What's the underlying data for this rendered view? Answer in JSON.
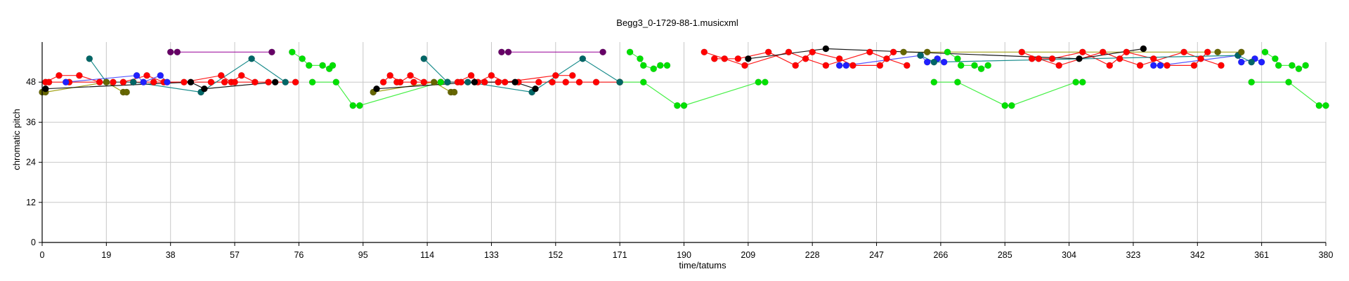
{
  "chart_data": {
    "type": "scatter",
    "title": "Begg3_0-1729-88-1.musicxml",
    "xlabel": "time/tatums",
    "ylabel": "chromatic pitch",
    "xlim": [
      0,
      380
    ],
    "ylim": [
      0,
      60
    ],
    "xticks": [
      0,
      19,
      38,
      57,
      76,
      95,
      114,
      133,
      152,
      171,
      190,
      209,
      228,
      247,
      266,
      285,
      304,
      323,
      342,
      361,
      380
    ],
    "yticks": [
      0,
      12,
      24,
      36,
      48
    ],
    "grid": true,
    "legend": "none",
    "colors": {
      "red": "#ff0000",
      "green": "#00e000",
      "blue": "#2020ff",
      "teal": "#006666",
      "olive": "#666600",
      "purple": "#660066",
      "black": "#000000",
      "red_line": "#ff0000",
      "green_line": "#33ee33",
      "blue_line": "#4444ff",
      "teal_line": "#008080",
      "olive_line": "#999900",
      "purple_line": "#990099"
    },
    "series": [
      {
        "color": "red",
        "line": "red_line",
        "chains": [
          [
            [
              1,
              48
            ],
            [
              5,
              50
            ],
            [
              11,
              50
            ],
            [
              17,
              48
            ],
            [
              24,
              48
            ],
            [
              31,
              50
            ],
            [
              36,
              48
            ],
            [
              42,
              48
            ],
            [
              53,
              50
            ],
            [
              56,
              48
            ],
            [
              59,
              50
            ],
            [
              63,
              48
            ]
          ],
          [
            [
              2,
              48
            ],
            [
              8,
              48
            ],
            [
              21,
              48
            ],
            [
              27,
              48
            ],
            [
              33,
              48
            ],
            [
              50,
              48
            ],
            [
              54,
              48
            ],
            [
              57,
              48
            ],
            [
              67,
              48
            ],
            [
              75,
              48
            ]
          ],
          [
            [
              101,
              48
            ],
            [
              103,
              50
            ],
            [
              106,
              48
            ],
            [
              109,
              50
            ],
            [
              113,
              48
            ],
            [
              118,
              48
            ],
            [
              123,
              48
            ],
            [
              127,
              50
            ],
            [
              129,
              48
            ],
            [
              133,
              50
            ],
            [
              137,
              48
            ],
            [
              152,
              50
            ],
            [
              157,
              50
            ]
          ],
          [
            [
              105,
              48
            ],
            [
              110,
              48
            ],
            [
              124,
              48
            ],
            [
              131,
              48
            ],
            [
              135,
              48
            ],
            [
              141,
              48
            ],
            [
              147,
              48
            ],
            [
              151,
              48
            ],
            [
              155,
              48
            ],
            [
              159,
              48
            ],
            [
              164,
              48
            ],
            [
              171,
              48
            ]
          ],
          [
            [
              196,
              57
            ],
            [
              202,
              55
            ],
            [
              208,
              53
            ],
            [
              221,
              57
            ],
            [
              226,
              55
            ],
            [
              232,
              53
            ],
            [
              245,
              57
            ],
            [
              250,
              55
            ],
            [
              256,
              53
            ]
          ],
          [
            [
              199,
              55
            ],
            [
              206,
              55
            ],
            [
              215,
              57
            ],
            [
              223,
              53
            ],
            [
              228,
              57
            ],
            [
              236,
              55
            ],
            [
              240,
              53
            ],
            [
              248,
              53
            ],
            [
              252,
              57
            ]
          ],
          [
            [
              290,
              57
            ],
            [
              295,
              55
            ],
            [
              301,
              53
            ],
            [
              314,
              57
            ],
            [
              319,
              55
            ],
            [
              325,
              53
            ],
            [
              338,
              57
            ],
            [
              343,
              55
            ],
            [
              349,
              53
            ]
          ],
          [
            [
              293,
              55
            ],
            [
              299,
              55
            ],
            [
              308,
              57
            ],
            [
              316,
              53
            ],
            [
              321,
              57
            ],
            [
              329,
              55
            ],
            [
              333,
              53
            ],
            [
              341,
              53
            ],
            [
              345,
              57
            ]
          ]
        ]
      },
      {
        "color": "green",
        "line": "green_line",
        "chains": [
          [
            [
              74,
              57
            ],
            [
              77,
              55
            ],
            [
              79,
              53
            ],
            [
              83,
              53
            ],
            [
              85,
              52
            ],
            [
              86,
              53
            ]
          ],
          [
            [
              80,
              48
            ],
            [
              87,
              48
            ],
            [
              92,
              41
            ],
            [
              94,
              41
            ],
            [
              118,
              48
            ],
            [
              120,
              48
            ]
          ],
          [
            [
              174,
              57
            ],
            [
              177,
              55
            ],
            [
              178,
              53
            ],
            [
              181,
              52
            ],
            [
              183,
              53
            ],
            [
              185,
              53
            ]
          ],
          [
            [
              171,
              48
            ],
            [
              178,
              48
            ],
            [
              188,
              41
            ],
            [
              190,
              41
            ],
            [
              212,
              48
            ],
            [
              214,
              48
            ]
          ],
          [
            [
              268,
              57
            ],
            [
              271,
              55
            ],
            [
              272,
              53
            ],
            [
              276,
              53
            ],
            [
              278,
              52
            ],
            [
              280,
              53
            ]
          ],
          [
            [
              264,
              48
            ],
            [
              271,
              48
            ],
            [
              285,
              41
            ],
            [
              287,
              41
            ],
            [
              306,
              48
            ],
            [
              308,
              48
            ]
          ],
          [
            [
              362,
              57
            ],
            [
              365,
              55
            ],
            [
              366,
              53
            ],
            [
              370,
              53
            ],
            [
              372,
              52
            ],
            [
              374,
              53
            ]
          ],
          [
            [
              358,
              48
            ],
            [
              369,
              48
            ],
            [
              378,
              41
            ],
            [
              380,
              41
            ]
          ]
        ]
      },
      {
        "color": "blue",
        "line": "blue_line",
        "chains": [
          [
            [
              7,
              48
            ],
            [
              28,
              50
            ],
            [
              30,
              48
            ],
            [
              35,
              50
            ],
            [
              37,
              48
            ]
          ],
          [
            [
              236,
              53
            ],
            [
              238,
              53
            ],
            [
              260,
              56
            ],
            [
              262,
              54
            ],
            [
              265,
              55
            ],
            [
              267,
              54
            ]
          ],
          [
            [
              329,
              53
            ],
            [
              331,
              53
            ],
            [
              354,
              56
            ],
            [
              355,
              54
            ],
            [
              359,
              55
            ],
            [
              361,
              54
            ]
          ]
        ]
      },
      {
        "color": "teal",
        "line": "teal_line",
        "chains": [
          [
            [
              14,
              55
            ],
            [
              19,
              48
            ],
            [
              27,
              48
            ],
            [
              47,
              45
            ],
            [
              62,
              55
            ],
            [
              72,
              48
            ]
          ],
          [
            [
              113,
              55
            ],
            [
              120,
              48
            ],
            [
              126,
              48
            ],
            [
              145,
              45
            ],
            [
              160,
              55
            ],
            [
              171,
              48
            ]
          ],
          [
            [
              260,
              56
            ],
            [
              264,
              54
            ],
            [
              354,
              56
            ],
            [
              358,
              54
            ]
          ]
        ]
      },
      {
        "color": "olive",
        "line": "olive_line",
        "chains": [
          [
            [
              0,
              45
            ],
            [
              1,
              45
            ],
            [
              19,
              48
            ],
            [
              24,
              45
            ],
            [
              25,
              45
            ]
          ],
          [
            [
              98,
              45
            ],
            [
              116,
              48
            ],
            [
              121,
              45
            ],
            [
              122,
              45
            ]
          ],
          [
            [
              255,
              57
            ],
            [
              262,
              57
            ],
            [
              348,
              57
            ],
            [
              355,
              57
            ]
          ]
        ]
      },
      {
        "color": "purple",
        "line": "purple_line",
        "chains": [
          [
            [
              38,
              57
            ],
            [
              40,
              57
            ],
            [
              68,
              57
            ]
          ],
          [
            [
              136,
              57
            ],
            [
              138,
              57
            ],
            [
              166,
              57
            ]
          ]
        ]
      },
      {
        "color": "black",
        "line": "black",
        "chains": [
          [
            [
              1,
              46
            ],
            [
              44,
              48
            ],
            [
              48,
              46
            ],
            [
              69,
              48
            ]
          ],
          [
            [
              99,
              46
            ],
            [
              128,
              48
            ],
            [
              140,
              48
            ],
            [
              146,
              46
            ]
          ],
          [
            [
              209,
              55
            ],
            [
              232,
              58
            ],
            [
              307,
              55
            ],
            [
              326,
              58
            ]
          ]
        ]
      }
    ]
  }
}
